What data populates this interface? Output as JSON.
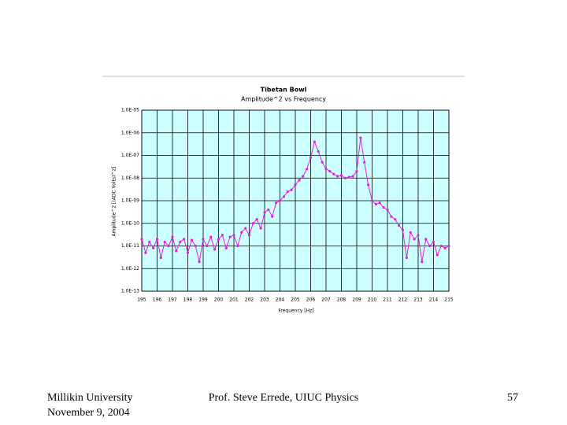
{
  "chart_data": {
    "type": "line",
    "title": "Tibetan Bowl",
    "subtitle": "Amplitude^2 vs Frequency",
    "x_label": "Frequency [Hz]",
    "y_label": "Amplitude^2 [(ADC Volts)^2]",
    "log_y": true,
    "grid": true,
    "background": "#ccffff",
    "xlim": [
      195,
      215
    ],
    "xticks": [
      195,
      196,
      197,
      198,
      199,
      200,
      201,
      202,
      203,
      204,
      205,
      206,
      207,
      208,
      209,
      210,
      211,
      212,
      213,
      214,
      215
    ],
    "ylim": [
      1e-13,
      1e-05
    ],
    "yticks": [
      {
        "value": 1e-13,
        "label": "1.0E-13"
      },
      {
        "value": 1e-12,
        "label": "1.0E-12"
      },
      {
        "value": 1e-11,
        "label": "1.0E-11"
      },
      {
        "value": 1e-10,
        "label": "1.0E-10"
      },
      {
        "value": 1e-09,
        "label": "1.0E-09"
      },
      {
        "value": 1e-08,
        "label": "1.0E-08"
      },
      {
        "value": 1e-07,
        "label": "1.0E-07"
      },
      {
        "value": 1e-06,
        "label": "1.0E-06"
      },
      {
        "value": 1e-05,
        "label": "1.0E-05"
      }
    ],
    "x": [
      195,
      195.25,
      195.5,
      195.75,
      196,
      196.25,
      196.5,
      196.75,
      197,
      197.25,
      197.5,
      197.75,
      198,
      198.25,
      198.5,
      198.75,
      199,
      199.25,
      199.5,
      199.75,
      200,
      200.25,
      200.5,
      200.75,
      201,
      201.25,
      201.5,
      201.75,
      202,
      202.25,
      202.5,
      202.75,
      203,
      203.25,
      203.5,
      203.75,
      204,
      204.25,
      204.5,
      204.75,
      205,
      205.25,
      205.5,
      205.75,
      206,
      206.25,
      206.5,
      206.75,
      207,
      207.25,
      207.5,
      207.75,
      208,
      208.25,
      208.5,
      208.75,
      209,
      209.25,
      209.5,
      209.75,
      210,
      210.25,
      210.5,
      210.75,
      211,
      211.25,
      211.5,
      211.75,
      212,
      212.25,
      212.5,
      212.75,
      213,
      213.25,
      213.5,
      213.75,
      214,
      214.25,
      214.5,
      214.75,
      215
    ],
    "series": [
      {
        "color": "#e020e0",
        "values": [
          2e-11,
          5e-12,
          1.5e-11,
          8e-12,
          2e-11,
          3e-12,
          1.5e-11,
          1e-11,
          2.5e-11,
          6e-12,
          1.5e-11,
          2e-11,
          5e-12,
          1.8e-11,
          1e-11,
          2e-12,
          2e-11,
          1e-11,
          2.5e-11,
          7e-12,
          2e-11,
          3e-11,
          8e-12,
          2.5e-11,
          3e-11,
          1e-11,
          4e-11,
          6e-11,
          3e-11,
          1e-10,
          1.5e-10,
          6e-11,
          3e-10,
          4e-10,
          2e-10,
          8e-10,
          1e-09,
          1.5e-09,
          2.5e-09,
          3e-09,
          5e-09,
          8e-09,
          1.2e-08,
          2.5e-08,
          8e-08,
          4e-07,
          1.5e-07,
          5e-08,
          2.5e-08,
          2e-08,
          1.5e-08,
          1.2e-08,
          1.3e-08,
          1e-08,
          1.1e-08,
          1.2e-08,
          2e-08,
          6e-07,
          5e-08,
          5e-09,
          1e-09,
          7e-10,
          8e-10,
          5e-10,
          4e-10,
          2e-10,
          1.5e-10,
          8e-11,
          5e-11,
          3e-12,
          4e-11,
          2e-11,
          3e-11,
          2e-12,
          2e-11,
          1e-11,
          1.5e-11,
          4e-12,
          1e-11,
          8e-12,
          1e-11
        ]
      }
    ]
  },
  "footer": {
    "left": [
      "Millikin University",
      "November 9, 2004"
    ],
    "center": "Prof. Steve Errede, UIUC Physics",
    "right": "57"
  }
}
